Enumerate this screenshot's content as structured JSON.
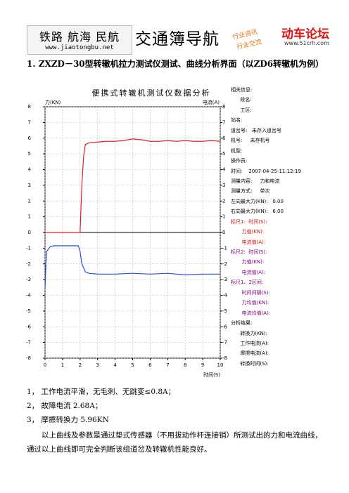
{
  "header": {
    "logo_top": "铁路 航海 民航",
    "logo_url": "www.jiaotongbu.net",
    "brand": "交通簿导航",
    "slogan_1": "行业资讯",
    "slogan_2": "行业交流",
    "forum": "动车论坛",
    "forum_url": "www.51crh.com"
  },
  "title": "1.  ZXZD－30型转辙机拉力测试仪测试、曲线分析界面（以ZD6转辙机为例）",
  "chart_data": {
    "type": "line",
    "title": "便携式转辙机测试仪数据分析",
    "y_label": "力(KN)",
    "y2_label": "电流(A)",
    "x_label": "时间(S)",
    "xlim": [
      0,
      10
    ],
    "xticks": [
      0,
      1,
      2,
      3,
      4,
      5,
      6,
      7,
      8,
      9,
      10
    ],
    "ylim": [
      -8,
      8
    ],
    "yticks": [
      -8,
      -7,
      -6,
      -5,
      -4,
      -3,
      -2,
      -1,
      0,
      1,
      2,
      3,
      4,
      5,
      6,
      7,
      8
    ],
    "y2lim": [
      -8,
      8
    ],
    "y2ticks": [
      -8,
      -7,
      -6,
      -5,
      -4,
      -3,
      -2,
      -1,
      0,
      1,
      2,
      3,
      4,
      5,
      6,
      7,
      8
    ],
    "grid": true,
    "series": [
      {
        "name": "力",
        "color": "#e02020",
        "x": [
          0,
          1,
          2,
          2.05,
          2.1,
          2.2,
          2.3,
          2.5,
          3,
          3.5,
          4,
          4.5,
          5,
          5.5,
          6,
          6.5,
          7,
          7.5,
          8,
          8.5,
          9,
          9.5,
          10
        ],
        "values": [
          0,
          0,
          0,
          1.5,
          3,
          4.8,
          5.6,
          5.7,
          5.75,
          5.8,
          5.8,
          5.85,
          5.95,
          5.9,
          5.8,
          5.8,
          5.85,
          5.8,
          5.85,
          5.8,
          5.8,
          5.85,
          5.8
        ]
      },
      {
        "name": "电流",
        "color": "#2050e0",
        "axis": "y2",
        "x": [
          0,
          0.05,
          0.1,
          0.3,
          0.5,
          1,
          1.5,
          1.9,
          2,
          2.1,
          2.3,
          2.5,
          3,
          3.5,
          4,
          5,
          6,
          7,
          8,
          9,
          10
        ],
        "values": [
          -3.6,
          -2,
          -1.2,
          -0.9,
          -0.85,
          -0.85,
          -0.85,
          -0.85,
          -1.2,
          -2,
          -2.5,
          -2.6,
          -2.65,
          -2.65,
          -2.65,
          -2.6,
          -2.65,
          -2.6,
          -2.7,
          -2.65,
          -2.65
        ]
      }
    ]
  },
  "side_panel": [
    {
      "text": "相关信息:",
      "color": "#000000"
    },
    {
      "text": "      段名:",
      "color": "#000000"
    },
    {
      "text": "      工区:",
      "color": "#000000"
    },
    {
      "text": "站名:",
      "color": "#000000"
    },
    {
      "text": "道岔号:   未存入道岔号",
      "color": "#000000"
    },
    {
      "text": "机号:     未存机号",
      "color": "#000000"
    },
    {
      "text": "机型:",
      "color": "#000000"
    },
    {
      "text": "操作员:",
      "color": "#000000"
    },
    {
      "text": "时间:    2007-04-25-11:12:19",
      "color": "#000000"
    },
    {
      "text": "测量内容:     力和电流",
      "color": "#000000"
    },
    {
      "text": "测量方式:     单次",
      "color": "#000000"
    },
    {
      "text": "左向最大力(KN):   0.00",
      "color": "#000000"
    },
    {
      "text": "右向最大力(KN):   6.00",
      "color": "#000000"
    },
    {
      "text": "标尺1:  时间(S):",
      "color": "#d01010"
    },
    {
      "text": "       力值(KN):",
      "color": "#d01010"
    },
    {
      "text": "       电流值(A):",
      "color": "#d01010"
    },
    {
      "text": "标尺2:  时间(S):",
      "color": "#800080"
    },
    {
      "text": "       力值(KN):",
      "color": "#800080"
    },
    {
      "text": "       电流值(A):",
      "color": "#800080"
    },
    {
      "text": "标尺1、2区间:",
      "color": "#800080"
    },
    {
      "text": "       时间间隔(S):",
      "color": "#800080"
    },
    {
      "text": "       力均值(KN):",
      "color": "#800080"
    },
    {
      "text": "       电流均值(A):",
      "color": "#800080"
    },
    {
      "text": "分析结果:",
      "color": "#000000"
    },
    {
      "text": "      转换力(KN):",
      "color": "#000000"
    },
    {
      "text": "      工作电流(A):",
      "color": "#000000"
    },
    {
      "text": "      摩擦电流(A):",
      "color": "#000000"
    },
    {
      "text": "      转换时间(S):",
      "color": "#000000"
    }
  ],
  "body": [
    "1，  工作电流平滑，无毛刺、无跳变≤0.8A；",
    "2，  故障电流 2.68A；",
    "3，  摩擦转换力 5.96KN",
    "以上曲线及参数是通过垫式传感器（不用拔动作杆连接销）所测试出的力和电流曲线，通过以上曲线即可完全判断该组道岔及转辙机性能良好。"
  ]
}
